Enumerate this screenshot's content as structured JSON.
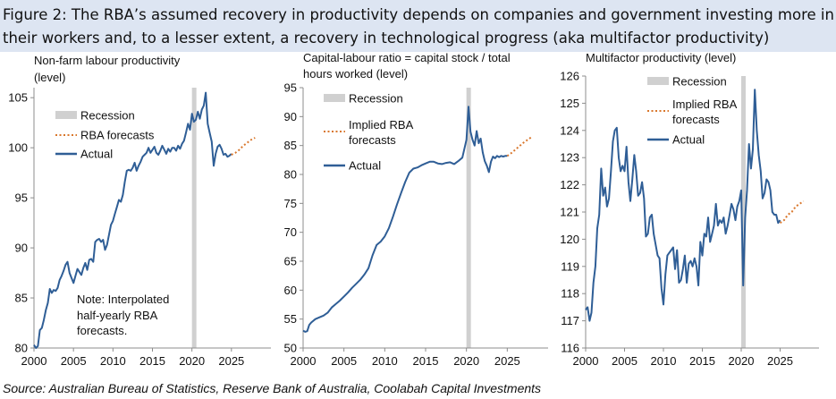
{
  "figure": {
    "title_line_1": "Figure 2: The RBA’s assumed recovery in productivity depends on companies and government investing more in",
    "title_line_2": "their workers and, to a lesser extent, a recovery in technological progress (aka multifactor productivity)",
    "source": "Source: Australian Bureau of Statistics, Reserve Bank of Australia, Coolabah Capital Investments"
  },
  "colors": {
    "title_band": "#dde5f2",
    "actual": "#2f5e96",
    "forecast": "#d9772c",
    "recession": "#d0d0d0",
    "axis": "#8c8c8c"
  },
  "chart_data": [
    {
      "type": "line",
      "title_lines": [
        "Non-farm labour productivity",
        "(level)"
      ],
      "xlim": [
        2000,
        2030
      ],
      "ylim": [
        80,
        106
      ],
      "yticks": [
        80,
        85,
        90,
        95,
        100,
        105
      ],
      "xticks": [
        2000,
        2005,
        2010,
        2015,
        2020,
        2025
      ],
      "grid": false,
      "legend_position": "left",
      "recession": {
        "label": "Recession",
        "start": 2020.0,
        "end": 2020.5
      },
      "note_lines": [
        "Note: Interpolated",
        "half-yearly RBA",
        "forecasts."
      ],
      "series": [
        {
          "name": "Actual",
          "style": "solid",
          "x": [
            2000.0,
            2000.25,
            2000.5,
            2000.75,
            2001.0,
            2001.25,
            2001.5,
            2001.75,
            2002.0,
            2002.25,
            2002.5,
            2002.75,
            2003.0,
            2003.25,
            2003.5,
            2003.75,
            2004.0,
            2004.25,
            2004.5,
            2004.75,
            2005.0,
            2005.25,
            2005.5,
            2005.75,
            2006.0,
            2006.25,
            2006.5,
            2006.75,
            2007.0,
            2007.25,
            2007.5,
            2007.75,
            2008.0,
            2008.25,
            2008.5,
            2008.75,
            2009.0,
            2009.25,
            2009.5,
            2009.75,
            2010.0,
            2010.25,
            2010.5,
            2010.75,
            2011.0,
            2011.25,
            2011.5,
            2011.75,
            2012.0,
            2012.25,
            2012.5,
            2012.75,
            2013.0,
            2013.25,
            2013.5,
            2013.75,
            2014.0,
            2014.25,
            2014.5,
            2014.75,
            2015.0,
            2015.25,
            2015.5,
            2015.75,
            2016.0,
            2016.25,
            2016.5,
            2016.75,
            2017.0,
            2017.25,
            2017.5,
            2017.75,
            2018.0,
            2018.25,
            2018.5,
            2018.75,
            2019.0,
            2019.25,
            2019.5,
            2019.75,
            2020.0,
            2020.25,
            2020.5,
            2020.75,
            2021.0,
            2021.25,
            2021.5,
            2021.75,
            2022.0,
            2022.25,
            2022.5,
            2022.75,
            2023.0,
            2023.25,
            2023.5,
            2023.75,
            2024.0,
            2024.25,
            2024.5,
            2024.75,
            2025.0
          ],
          "values": [
            80.3,
            80.0,
            80.2,
            81.8,
            82.0,
            82.8,
            83.8,
            84.5,
            85.9,
            85.5,
            85.8,
            85.7,
            86.0,
            86.8,
            87.2,
            87.7,
            88.3,
            88.6,
            87.5,
            87.0,
            86.5,
            87.2,
            87.9,
            87.6,
            87.3,
            88.0,
            88.5,
            87.8,
            88.8,
            88.9,
            88.6,
            90.6,
            90.8,
            90.9,
            90.6,
            90.8,
            89.8,
            90.3,
            91.3,
            92.3,
            92.7,
            93.4,
            94.1,
            94.8,
            94.6,
            95.3,
            96.6,
            97.7,
            97.8,
            97.7,
            98.0,
            98.5,
            97.7,
            98.2,
            98.6,
            99.1,
            99.3,
            99.5,
            100.0,
            99.5,
            99.8,
            100.1,
            99.5,
            99.3,
            99.7,
            100.2,
            99.8,
            99.4,
            99.9,
            99.6,
            100.0,
            100.0,
            99.7,
            100.2,
            99.9,
            100.4,
            100.7,
            101.5,
            102.4,
            101.8,
            103.4,
            102.6,
            102.8,
            103.6,
            102.9,
            103.8,
            104.2,
            105.5,
            102.4,
            101.5,
            100.6,
            98.2,
            99.4,
            100.1,
            100.3,
            99.9,
            99.3,
            99.4,
            99.1,
            99.2,
            99.4
          ]
        },
        {
          "name": "RBA forecasts",
          "style": "dotted",
          "x": [
            2025.0,
            2025.5,
            2026.0,
            2026.5,
            2027.0,
            2027.5,
            2028.0
          ],
          "values": [
            99.3,
            99.5,
            99.8,
            100.2,
            100.5,
            100.8,
            101.0
          ]
        }
      ]
    },
    {
      "type": "line",
      "title_lines": [
        "Capital-labour ratio = capital stock / total",
        "hours worked (level)"
      ],
      "xlim": [
        2000,
        2030
      ],
      "ylim": [
        50,
        95
      ],
      "yticks": [
        50,
        55,
        60,
        65,
        70,
        75,
        80,
        85,
        90,
        95
      ],
      "xticks": [
        2000,
        2005,
        2010,
        2015,
        2020,
        2025
      ],
      "grid": false,
      "legend_position": "top",
      "recession": {
        "label": "Recession",
        "start": 2020.0,
        "end": 2020.5
      },
      "series": [
        {
          "name": "Actual",
          "style": "solid",
          "x": [
            2000.0,
            2000.25,
            2000.5,
            2000.75,
            2001.0,
            2001.5,
            2002.0,
            2002.5,
            2003.0,
            2003.5,
            2004.0,
            2004.5,
            2005.0,
            2005.5,
            2006.0,
            2006.5,
            2007.0,
            2007.5,
            2008.0,
            2008.5,
            2009.0,
            2009.5,
            2010.0,
            2010.5,
            2011.0,
            2011.5,
            2012.0,
            2012.5,
            2013.0,
            2013.5,
            2014.0,
            2014.5,
            2015.0,
            2015.5,
            2016.0,
            2016.5,
            2017.0,
            2017.5,
            2018.0,
            2018.5,
            2019.0,
            2019.5,
            2020.0,
            2020.25,
            2020.5,
            2020.75,
            2021.0,
            2021.25,
            2021.5,
            2021.75,
            2022.0,
            2022.25,
            2022.5,
            2022.75,
            2023.0,
            2023.25,
            2023.5,
            2023.75,
            2024.0,
            2024.25,
            2024.5,
            2024.75,
            2025.0
          ],
          "values": [
            53.0,
            52.8,
            52.9,
            54.0,
            54.4,
            55.0,
            55.3,
            55.6,
            56.1,
            57.0,
            57.6,
            58.2,
            58.9,
            59.6,
            60.4,
            61.1,
            61.8,
            62.7,
            63.8,
            66.0,
            67.8,
            68.4,
            69.3,
            70.7,
            72.7,
            74.8,
            76.8,
            78.7,
            80.3,
            81.0,
            81.2,
            81.6,
            81.9,
            82.2,
            82.2,
            81.9,
            81.8,
            82.0,
            82.1,
            81.8,
            82.3,
            82.9,
            86.0,
            91.7,
            87.4,
            86.0,
            85.0,
            87.5,
            85.4,
            86.2,
            83.8,
            82.3,
            81.5,
            80.4,
            82.2,
            83.1,
            82.8,
            83.2,
            83.0,
            83.2,
            83.1,
            83.2,
            83.2
          ]
        },
        {
          "name": "Implied RBA forecasts",
          "style": "dotted",
          "x": [
            2025.0,
            2025.5,
            2026.0,
            2026.5,
            2027.0,
            2027.5,
            2028.0
          ],
          "values": [
            83.2,
            83.7,
            84.3,
            84.9,
            85.5,
            86.0,
            86.5
          ]
        }
      ]
    },
    {
      "type": "line",
      "title_lines": [
        "Multifactor productivity (level)"
      ],
      "xlim": [
        2000,
        2030
      ],
      "ylim": [
        116,
        126
      ],
      "yticks": [
        116,
        117,
        118,
        119,
        120,
        121,
        122,
        123,
        124,
        125,
        126
      ],
      "xticks": [
        2000,
        2005,
        2010,
        2015,
        2020,
        2025
      ],
      "grid": false,
      "legend_position": "top",
      "recession": {
        "label": "Recession",
        "start": 2020.0,
        "end": 2020.5
      },
      "series": [
        {
          "name": "Actual",
          "style": "solid",
          "x": [
            2000.0,
            2000.25,
            2000.5,
            2000.75,
            2001.0,
            2001.25,
            2001.5,
            2001.75,
            2002.0,
            2002.25,
            2002.5,
            2002.75,
            2003.0,
            2003.25,
            2003.5,
            2003.75,
            2004.0,
            2004.25,
            2004.5,
            2004.75,
            2005.0,
            2005.25,
            2005.5,
            2005.75,
            2006.0,
            2006.25,
            2006.5,
            2006.75,
            2007.0,
            2007.25,
            2007.5,
            2007.75,
            2008.0,
            2008.25,
            2008.5,
            2008.75,
            2009.0,
            2009.25,
            2009.5,
            2009.75,
            2010.0,
            2010.25,
            2010.5,
            2010.75,
            2011.0,
            2011.25,
            2011.5,
            2011.75,
            2012.0,
            2012.25,
            2012.5,
            2012.75,
            2013.0,
            2013.25,
            2013.5,
            2013.75,
            2014.0,
            2014.25,
            2014.5,
            2014.75,
            2015.0,
            2015.25,
            2015.5,
            2015.75,
            2016.0,
            2016.25,
            2016.5,
            2016.75,
            2017.0,
            2017.25,
            2017.5,
            2017.75,
            2018.0,
            2018.25,
            2018.5,
            2018.75,
            2019.0,
            2019.25,
            2019.5,
            2019.75,
            2020.0,
            2020.25,
            2020.5,
            2020.75,
            2021.0,
            2021.25,
            2021.5,
            2021.75,
            2022.0,
            2022.25,
            2022.5,
            2022.75,
            2023.0,
            2023.25,
            2023.5,
            2023.75,
            2024.0,
            2024.25,
            2024.5,
            2024.75,
            2025.0
          ],
          "values": [
            117.4,
            117.5,
            117.0,
            117.3,
            118.4,
            119.0,
            120.4,
            120.9,
            122.6,
            121.6,
            121.9,
            121.2,
            121.5,
            122.5,
            123.6,
            124.0,
            124.1,
            123.0,
            122.5,
            122.7,
            122.5,
            123.4,
            122.1,
            121.4,
            122.2,
            123.1,
            122.5,
            121.6,
            121.7,
            122.1,
            121.5,
            120.1,
            120.2,
            120.8,
            120.9,
            120.2,
            119.8,
            119.4,
            119.3,
            118.2,
            117.6,
            118.7,
            119.4,
            119.5,
            119.6,
            119.7,
            118.9,
            119.6,
            118.4,
            118.5,
            118.9,
            119.4,
            118.4,
            119.1,
            119.2,
            119.0,
            119.3,
            119.0,
            118.3,
            119.9,
            119.4,
            120.2,
            120.1,
            120.8,
            119.9,
            120.2,
            120.5,
            121.3,
            120.5,
            120.7,
            120.6,
            120.8,
            120.2,
            120.5,
            120.9,
            121.3,
            121.1,
            120.7,
            121.2,
            121.4,
            121.8,
            118.3,
            120.8,
            121.8,
            123.5,
            122.6,
            123.3,
            125.5,
            124.0,
            123.1,
            122.5,
            121.5,
            121.7,
            122.2,
            122.1,
            121.8,
            121.0,
            120.9,
            120.9,
            120.6,
            120.7
          ]
        },
        {
          "name": "Implied RBA forecasts",
          "style": "dotted",
          "x": [
            2025.0,
            2025.5,
            2026.0,
            2026.5,
            2027.0,
            2027.5,
            2028.0
          ],
          "values": [
            120.6,
            120.7,
            120.9,
            121.0,
            121.2,
            121.3,
            121.4
          ]
        }
      ]
    }
  ]
}
